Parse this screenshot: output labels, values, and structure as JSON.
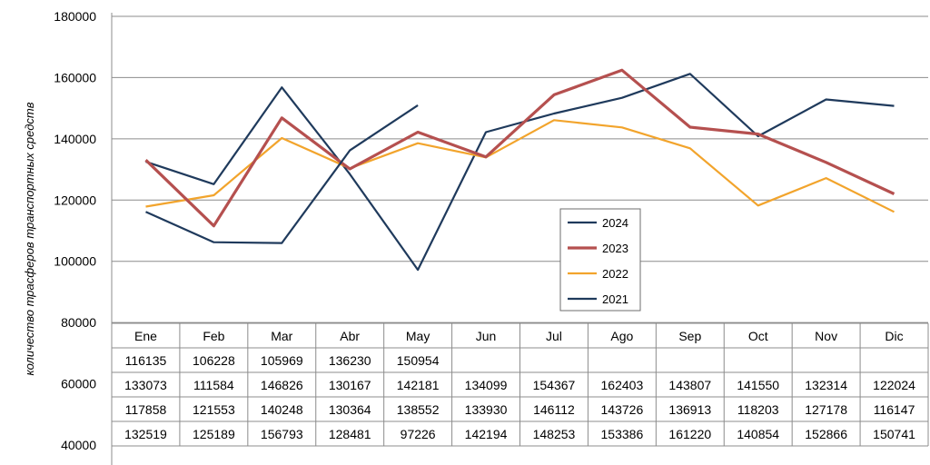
{
  "chart_data": {
    "type": "line",
    "ylabel": "количество трасферов транспортных средств",
    "ylim": [
      40000,
      180000
    ],
    "yticks": [
      40000,
      60000,
      80000,
      100000,
      120000,
      140000,
      160000,
      180000
    ],
    "categories": [
      "Ene",
      "Feb",
      "Mar",
      "Abr",
      "May",
      "Jun",
      "Jul",
      "Ago",
      "Sep",
      "Oct",
      "Nov",
      "Dic"
    ],
    "grid": true,
    "legend_position": "center-right",
    "legend_order": [
      "2024",
      "2023",
      "2022",
      "2021"
    ],
    "table_row_order": [
      "2024",
      "2023",
      "2022",
      "2021"
    ],
    "series": [
      {
        "name": "2024",
        "color": "#1f3a5c",
        "values": [
          116135,
          106228,
          105969,
          136230,
          150954,
          null,
          null,
          null,
          null,
          null,
          null,
          null
        ]
      },
      {
        "name": "2023",
        "color": "#b5504f",
        "values": [
          133073,
          111584,
          146826,
          130167,
          142181,
          134099,
          154367,
          162403,
          143807,
          141550,
          132314,
          122024
        ]
      },
      {
        "name": "2022",
        "color": "#f2a42c",
        "values": [
          117858,
          121553,
          140248,
          130364,
          138552,
          133930,
          146112,
          143726,
          136913,
          118203,
          127178,
          116147
        ]
      },
      {
        "name": "2021",
        "color": "#1f3a5c",
        "values": [
          132519,
          125189,
          156793,
          128481,
          97226,
          142194,
          148253,
          153386,
          161220,
          140854,
          152866,
          150741
        ]
      }
    ]
  }
}
